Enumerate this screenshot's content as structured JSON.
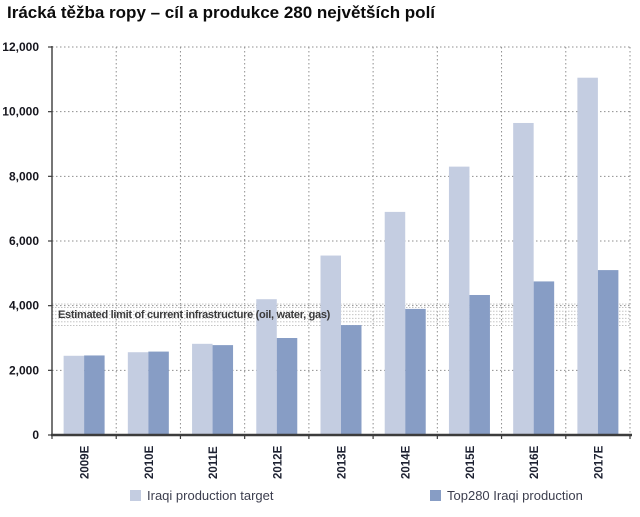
{
  "title": "Irácká těžba ropy – cíl a produkce 280 největších polí",
  "chart_data": {
    "type": "bar",
    "categories": [
      "2009E",
      "2010E",
      "2011E",
      "2012E",
      "2013E",
      "2014E",
      "2015E",
      "2016E",
      "2017E"
    ],
    "series": [
      {
        "name": "Iraqi production target",
        "color": "#c4cde1",
        "values": [
          2450,
          2560,
          2820,
          4200,
          5550,
          6900,
          8300,
          9650,
          11050
        ]
      },
      {
        "name": "Top280 Iraqi production",
        "color": "#879dc5",
        "values": [
          2460,
          2580,
          2780,
          3000,
          3400,
          3900,
          4330,
          4750,
          5100
        ]
      }
    ],
    "title": "Irácká těžba ropy – cíl a produkce 280 největších polí",
    "xlabel": "",
    "ylabel": "",
    "ylim": [
      0,
      12000
    ],
    "ytick_step": 2000,
    "ytick_labels": [
      "0",
      "2,000",
      "4,000",
      "6,000",
      "8,000",
      "10,000",
      "12,000"
    ],
    "grid": "dotted",
    "legend_position": "bottom",
    "annotation": {
      "label": "Estimated limit of current infrastructure (oil, water, gas)",
      "band_top_value": 4050,
      "band_bottom_value": 3390,
      "band_line_count": 7
    }
  }
}
